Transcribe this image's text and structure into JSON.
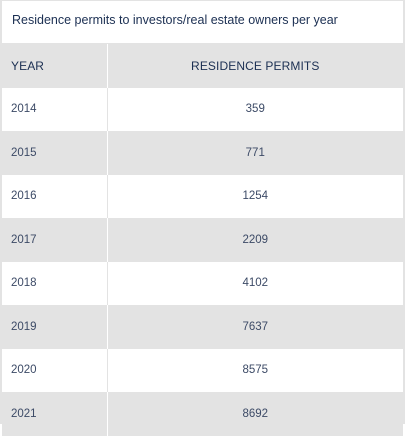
{
  "chart_data": {
    "type": "table",
    "title": "Residence permits to investors/real estate owners per year",
    "columns": [
      "YEAR",
      "RESIDENCE PERMITS"
    ],
    "rows": [
      {
        "year": "2014",
        "permits": "359"
      },
      {
        "year": "2015",
        "permits": "771"
      },
      {
        "year": "2016",
        "permits": "1254"
      },
      {
        "year": "2017",
        "permits": "2209"
      },
      {
        "year": "2018",
        "permits": "4102"
      },
      {
        "year": "2019",
        "permits": "7637"
      },
      {
        "year": "2020",
        "permits": "8575"
      },
      {
        "year": "2021",
        "permits": "8692"
      }
    ]
  }
}
